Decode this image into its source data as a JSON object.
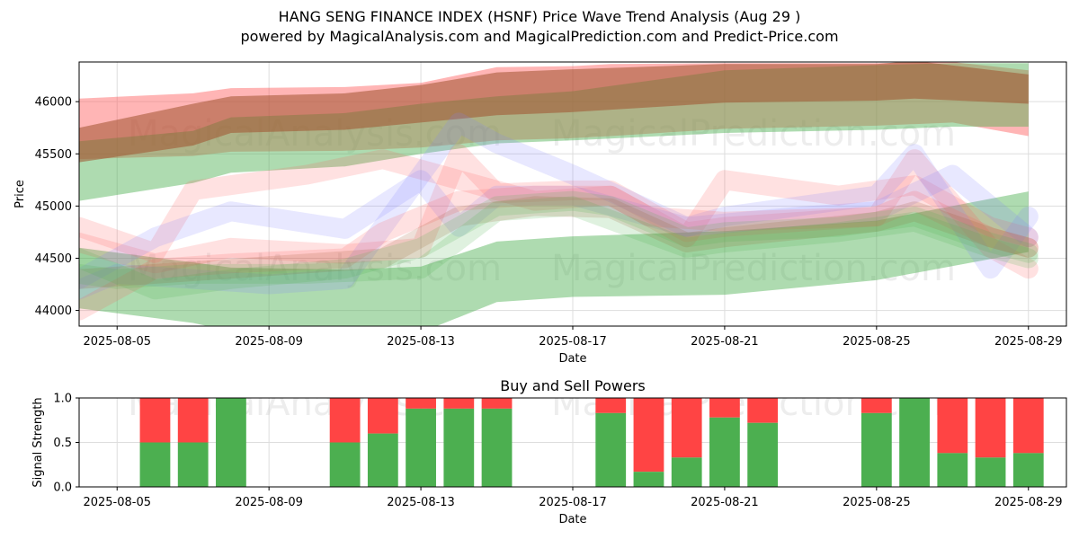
{
  "title_line1": "HANG SENG FINANCE INDEX (HSNF) Price Wave Trend Analysis (Aug 29 )",
  "title_line2": "powered by MagicalAnalysis.com and MagicalPrediction.com and Predict-Price.com",
  "watermarks": [
    "MagicalAnalysis.com",
    "MagicalPrediction.com"
  ],
  "colors": {
    "green_band": "#4caf50",
    "red_band": "#ff5a5a",
    "brown_band": "#a0522d",
    "blue_band": "#8080ff",
    "buy_bar": "#4caf50",
    "sell_bar": "#ff4444",
    "grid": "#dddddd",
    "frame": "#000000"
  },
  "chart_data": [
    {
      "type": "area",
      "title": "",
      "xlabel": "Date",
      "ylabel": "Price",
      "xlim": [
        "2025-08-04",
        "2025-08-30"
      ],
      "ylim": [
        43850,
        46380
      ],
      "x_ticks": [
        "2025-08-05",
        "2025-08-09",
        "2025-08-13",
        "2025-08-17",
        "2025-08-21",
        "2025-08-25",
        "2025-08-29"
      ],
      "y_ticks": [
        44000,
        44500,
        45000,
        45500,
        46000
      ],
      "grid": true,
      "legend": "none",
      "bands": [
        {
          "color": "red",
          "x": [
            "2025-08-04",
            "2025-08-07",
            "2025-08-08",
            "2025-08-11",
            "2025-08-13",
            "2025-08-15",
            "2025-08-17",
            "2025-08-18",
            "2025-08-21",
            "2025-08-25",
            "2025-08-27",
            "2025-08-29"
          ],
          "upper": [
            46030,
            46080,
            46130,
            46140,
            46180,
            46330,
            46340,
            46360,
            46370,
            46370,
            46380,
            46300
          ],
          "lower": [
            45450,
            45480,
            45520,
            45530,
            45560,
            45630,
            45650,
            45670,
            45740,
            45770,
            45800,
            45670
          ]
        },
        {
          "color": "green",
          "x": [
            "2025-08-04",
            "2025-08-07",
            "2025-08-08",
            "2025-08-11",
            "2025-08-13",
            "2025-08-15",
            "2025-08-17",
            "2025-08-21",
            "2025-08-25",
            "2025-08-27",
            "2025-08-29"
          ],
          "upper": [
            45620,
            45720,
            45850,
            45890,
            45980,
            46050,
            46100,
            46300,
            46350,
            46370,
            46370
          ],
          "lower": [
            45050,
            45220,
            45320,
            45380,
            45500,
            45600,
            45630,
            45700,
            45730,
            45760,
            45760
          ]
        },
        {
          "color": "brown",
          "x": [
            "2025-08-04",
            "2025-08-07",
            "2025-08-08",
            "2025-08-11",
            "2025-08-13",
            "2025-08-15",
            "2025-08-17",
            "2025-08-21",
            "2025-08-25",
            "2025-08-26",
            "2025-08-29"
          ],
          "upper": [
            45750,
            45980,
            46050,
            46080,
            46160,
            46280,
            46310,
            46360,
            46360,
            46390,
            46260
          ],
          "lower": [
            45420,
            45580,
            45700,
            45730,
            45800,
            45870,
            45900,
            45990,
            46010,
            46030,
            45980
          ]
        },
        {
          "color": "green",
          "x": [
            "2025-08-04",
            "2025-08-07",
            "2025-08-08",
            "2025-08-11",
            "2025-08-13",
            "2025-08-15",
            "2025-08-17",
            "2025-08-21",
            "2025-08-25",
            "2025-08-29"
          ],
          "upper": [
            44600,
            44460,
            44410,
            44390,
            44420,
            44660,
            44710,
            44760,
            44860,
            45140
          ],
          "lower": [
            44020,
            43880,
            43800,
            43760,
            43790,
            44080,
            44130,
            44150,
            44290,
            44560
          ]
        }
      ],
      "waves": [
        {
          "color": "red",
          "x": [
            "2025-08-04",
            "2025-08-06",
            "2025-08-08",
            "2025-08-11",
            "2025-08-13",
            "2025-08-14",
            "2025-08-15",
            "2025-08-17",
            "2025-08-18",
            "2025-08-20",
            "2025-08-21",
            "2025-08-25",
            "2025-08-26",
            "2025-08-28",
            "2025-08-29"
          ],
          "y": [
            44650,
            44450,
            44600,
            44540,
            44600,
            45500,
            45120,
            45150,
            45150,
            44750,
            44800,
            44900,
            45450,
            44600,
            44400
          ]
        },
        {
          "color": "red",
          "x": [
            "2025-08-04",
            "2025-08-06",
            "2025-08-07",
            "2025-08-10",
            "2025-08-12",
            "2025-08-14",
            "2025-08-16",
            "2025-08-18",
            "2025-08-20",
            "2025-08-21",
            "2025-08-24",
            "2025-08-26",
            "2025-08-28",
            "2025-08-29"
          ],
          "y": [
            44800,
            44550,
            45150,
            45300,
            45450,
            45250,
            45050,
            45100,
            44700,
            45250,
            45100,
            45200,
            44800,
            44700
          ]
        },
        {
          "color": "blue",
          "x": [
            "2025-08-04",
            "2025-08-05",
            "2025-08-06",
            "2025-08-08",
            "2025-08-11",
            "2025-08-13",
            "2025-08-14",
            "2025-08-15",
            "2025-08-17",
            "2025-08-20",
            "2025-08-21",
            "2025-08-25",
            "2025-08-26",
            "2025-08-28",
            "2025-08-29"
          ],
          "y": [
            44300,
            44500,
            44700,
            44950,
            44780,
            45250,
            44800,
            45100,
            45100,
            44800,
            44900,
            45100,
            45500,
            44400,
            44900
          ]
        },
        {
          "color": "blue",
          "x": [
            "2025-08-04",
            "2025-08-05",
            "2025-08-07",
            "2025-08-09",
            "2025-08-11",
            "2025-08-13",
            "2025-08-14",
            "2025-08-15",
            "2025-08-17",
            "2025-08-20",
            "2025-08-23",
            "2025-08-25",
            "2025-08-27",
            "2025-08-29"
          ],
          "y": [
            44200,
            44350,
            44300,
            44250,
            44300,
            45300,
            45800,
            45600,
            45300,
            44800,
            44900,
            44950,
            45300,
            44700
          ]
        },
        {
          "color": "red",
          "x": [
            "2025-08-04",
            "2025-08-06",
            "2025-08-08",
            "2025-08-11",
            "2025-08-12",
            "2025-08-14",
            "2025-08-16",
            "2025-08-18",
            "2025-08-19",
            "2025-08-21",
            "2025-08-25",
            "2025-08-26",
            "2025-08-28",
            "2025-08-29"
          ],
          "y": [
            44000,
            44400,
            44450,
            44500,
            44750,
            45050,
            45100,
            45100,
            44900,
            44850,
            44900,
            45050,
            44700,
            44600
          ]
        },
        {
          "color": "brown",
          "x": [
            "2025-08-04",
            "2025-08-06",
            "2025-08-08",
            "2025-08-10",
            "2025-08-12",
            "2025-08-14",
            "2025-08-16",
            "2025-08-18",
            "2025-08-20",
            "2025-08-21",
            "2025-08-25",
            "2025-08-26",
            "2025-08-28",
            "2025-08-29"
          ],
          "y": [
            44300,
            44350,
            44400,
            44450,
            44500,
            44900,
            45000,
            44980,
            44650,
            44700,
            44850,
            44950,
            44700,
            44600
          ]
        },
        {
          "color": "green",
          "x": [
            "2025-08-04",
            "2025-08-06",
            "2025-08-08",
            "2025-08-11",
            "2025-08-13",
            "2025-08-15",
            "2025-08-17",
            "2025-08-18",
            "2025-08-20",
            "2025-08-21",
            "2025-08-24",
            "2025-08-26",
            "2025-08-28",
            "2025-08-29"
          ],
          "y": [
            44500,
            44200,
            44300,
            44400,
            44600,
            45000,
            45050,
            45000,
            44700,
            44750,
            44800,
            44900,
            44650,
            44550
          ]
        },
        {
          "color": "green",
          "x": [
            "2025-08-04",
            "2025-08-05",
            "2025-08-07",
            "2025-08-10",
            "2025-08-13",
            "2025-08-15",
            "2025-08-17",
            "2025-08-20",
            "2025-08-21",
            "2025-08-24",
            "2025-08-26",
            "2025-08-28",
            "2025-08-29"
          ],
          "y": [
            44350,
            44300,
            44350,
            44350,
            44400,
            44950,
            45000,
            44600,
            44650,
            44750,
            44850,
            44600,
            44500
          ]
        }
      ]
    },
    {
      "type": "bar",
      "title": "Buy and Sell Powers",
      "xlabel": "Date",
      "ylabel": "Signal Strength",
      "xlim": [
        "2025-08-04",
        "2025-08-30"
      ],
      "ylim": [
        0,
        1
      ],
      "x_ticks": [
        "2025-08-05",
        "2025-08-09",
        "2025-08-13",
        "2025-08-17",
        "2025-08-21",
        "2025-08-25",
        "2025-08-29"
      ],
      "y_ticks": [
        "0.0",
        "0.5",
        "1.0"
      ],
      "grid": true,
      "categories": [
        "2025-08-06",
        "2025-08-07",
        "2025-08-08",
        "2025-08-11",
        "2025-08-12",
        "2025-08-13",
        "2025-08-14",
        "2025-08-15",
        "2025-08-18",
        "2025-08-19",
        "2025-08-20",
        "2025-08-21",
        "2025-08-22",
        "2025-08-25",
        "2025-08-26",
        "2025-08-27",
        "2025-08-28",
        "2025-08-29"
      ],
      "series": [
        {
          "values": [
            0.5,
            0.5,
            1.0,
            0.5,
            0.6,
            0.88,
            0.88,
            0.88,
            0.83,
            0.17,
            0.33,
            0.78,
            0.72,
            0.83,
            1.0,
            0.38,
            0.33,
            0.38
          ]
        },
        {
          "values": [
            0.5,
            0.5,
            0.0,
            0.5,
            0.4,
            0.12,
            0.12,
            0.12,
            0.17,
            0.83,
            0.67,
            0.22,
            0.28,
            0.17,
            0.0,
            0.62,
            0.67,
            0.62
          ]
        }
      ]
    }
  ]
}
